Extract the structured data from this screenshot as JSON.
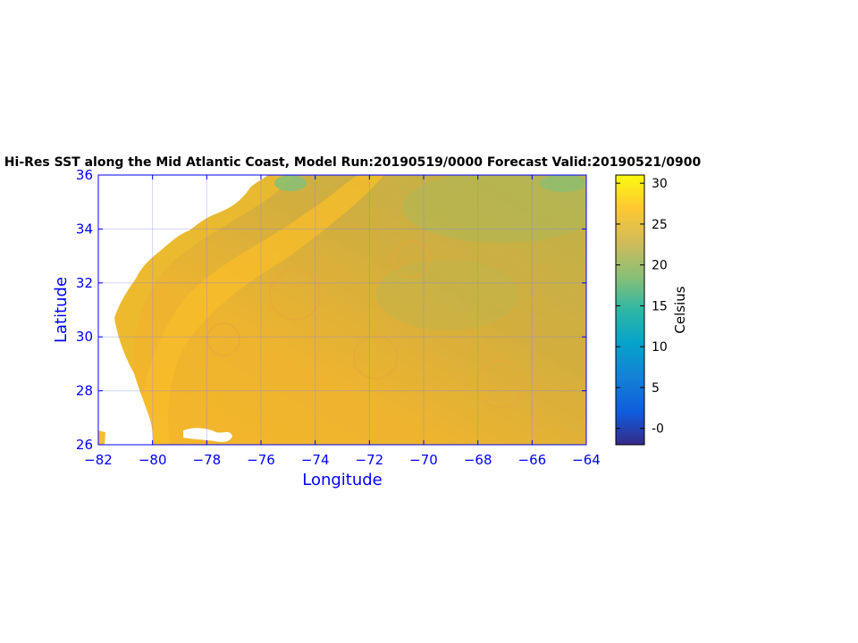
{
  "title": "M Hi-Res SST along the Mid Atlantic Coast, Model Run:20190519/0000 Forecast Valid:20190521/0900",
  "map": {
    "xlabel": "Longitude",
    "ylabel": "Latitude",
    "xlim": [
      -82,
      -64
    ],
    "ylim": [
      26,
      36
    ],
    "xticks": [
      "-82",
      "-80",
      "-78",
      "-76",
      "-74",
      "-72",
      "-70",
      "-68",
      "-66",
      "-64"
    ],
    "yticks": [
      "26",
      "28",
      "30",
      "32",
      "34",
      "36"
    ],
    "grid": true,
    "axis_color": "#0000ff",
    "land_color": "#ffffff",
    "ocean_colors": {
      "warm_gulf_stream": "#f7b52c",
      "shelf": "#eeb92a",
      "offshore": "#d0ae3e",
      "cool_north": "#a3bd5c"
    }
  },
  "colorbar": {
    "label": "Celsius",
    "ticks": [
      "-0",
      "5",
      "10",
      "15",
      "20",
      "25",
      "30"
    ],
    "tick_values": [
      0,
      5,
      10,
      15,
      20,
      25,
      30
    ],
    "range": [
      -2,
      31
    ],
    "colormap": "parula"
  }
}
